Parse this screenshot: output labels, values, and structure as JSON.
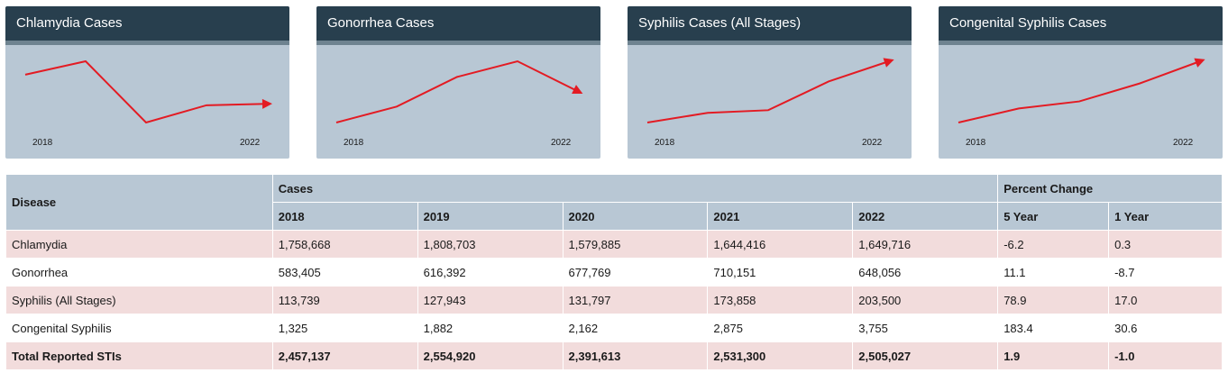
{
  "accent_color": "#e31b23",
  "card_bg": "#b8c7d4",
  "header_bg": "#283f4e",
  "chart_data": [
    {
      "type": "line",
      "title": "Chlamydia Cases",
      "x": [
        2018,
        2019,
        2020,
        2021,
        2022
      ],
      "values": [
        1758668,
        1808703,
        1579885,
        1644416,
        1649716
      ],
      "x_start_label": "2018",
      "x_end_label": "2022",
      "trend_arrow": true
    },
    {
      "type": "line",
      "title": "Gonorrhea Cases",
      "x": [
        2018,
        2019,
        2020,
        2021,
        2022
      ],
      "values": [
        583405,
        616392,
        677769,
        710151,
        648056
      ],
      "x_start_label": "2018",
      "x_end_label": "2022",
      "trend_arrow": true
    },
    {
      "type": "line",
      "title": "Syphilis Cases (All Stages)",
      "x": [
        2018,
        2019,
        2020,
        2021,
        2022
      ],
      "values": [
        113739,
        127943,
        131797,
        173858,
        203500
      ],
      "x_start_label": "2018",
      "x_end_label": "2022",
      "trend_arrow": true
    },
    {
      "type": "line",
      "title": "Congenital Syphilis Cases",
      "x": [
        2018,
        2019,
        2020,
        2021,
        2022
      ],
      "values": [
        1325,
        1882,
        2162,
        2875,
        3755
      ],
      "x_start_label": "2018",
      "x_end_label": "2022",
      "trend_arrow": true
    }
  ],
  "table": {
    "disease_header": "Disease",
    "cases_header": "Cases",
    "percent_header": "Percent Change",
    "years": [
      "2018",
      "2019",
      "2020",
      "2021",
      "2022"
    ],
    "pct_cols": [
      "5 Year",
      "1 Year"
    ],
    "rows": [
      {
        "disease": "Chlamydia",
        "cases": [
          "1,758,668",
          "1,808,703",
          "1,579,885",
          "1,644,416",
          "1,649,716"
        ],
        "pct": [
          "-6.2",
          "0.3"
        ]
      },
      {
        "disease": "Gonorrhea",
        "cases": [
          "583,405",
          "616,392",
          "677,769",
          "710,151",
          "648,056"
        ],
        "pct": [
          "11.1",
          "-8.7"
        ]
      },
      {
        "disease": "Syphilis (All Stages)",
        "cases": [
          "113,739",
          "127,943",
          "131,797",
          "173,858",
          "203,500"
        ],
        "pct": [
          "78.9",
          "17.0"
        ]
      },
      {
        "disease": "Congenital Syphilis",
        "cases": [
          "1,325",
          "1,882",
          "2,162",
          "2,875",
          "3,755"
        ],
        "pct": [
          "183.4",
          "30.6"
        ]
      },
      {
        "disease": "Total Reported STIs",
        "cases": [
          "2,457,137",
          "2,554,920",
          "2,391,613",
          "2,531,300",
          "2,505,027"
        ],
        "pct": [
          "1.9",
          "-1.0"
        ],
        "total": true
      }
    ]
  }
}
